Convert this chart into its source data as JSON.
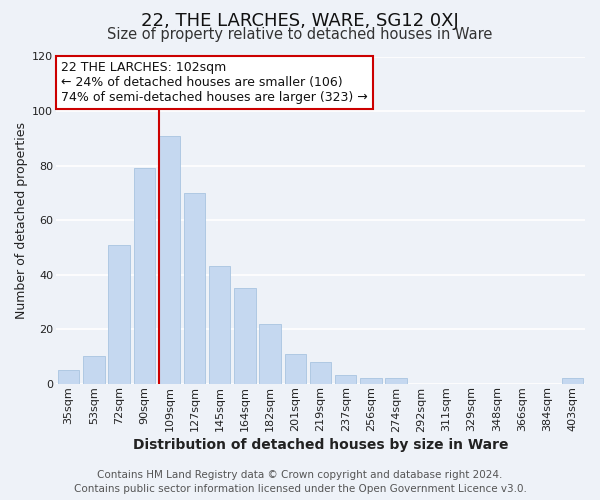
{
  "title": "22, THE LARCHES, WARE, SG12 0XJ",
  "subtitle": "Size of property relative to detached houses in Ware",
  "xlabel": "Distribution of detached houses by size in Ware",
  "ylabel": "Number of detached properties",
  "categories": [
    "35sqm",
    "53sqm",
    "72sqm",
    "90sqm",
    "109sqm",
    "127sqm",
    "145sqm",
    "164sqm",
    "182sqm",
    "201sqm",
    "219sqm",
    "237sqm",
    "256sqm",
    "274sqm",
    "292sqm",
    "311sqm",
    "329sqm",
    "348sqm",
    "366sqm",
    "384sqm",
    "403sqm"
  ],
  "values": [
    5,
    10,
    51,
    79,
    91,
    70,
    43,
    35,
    22,
    11,
    8,
    3,
    2,
    2,
    0,
    0,
    0,
    0,
    0,
    0,
    2
  ],
  "bar_color": "#c5d8f0",
  "bar_edge_color": "#a8c4e0",
  "vline_bar_index": 4,
  "vline_color": "#cc0000",
  "ylim": [
    0,
    120
  ],
  "yticks": [
    0,
    20,
    40,
    60,
    80,
    100,
    120
  ],
  "annotation_title": "22 THE LARCHES: 102sqm",
  "annotation_line1": "← 24% of detached houses are smaller (106)",
  "annotation_line2": "74% of semi-detached houses are larger (323) →",
  "annotation_box_facecolor": "#ffffff",
  "annotation_box_edgecolor": "#cc0000",
  "footer_line1": "Contains HM Land Registry data © Crown copyright and database right 2024.",
  "footer_line2": "Contains public sector information licensed under the Open Government Licence v3.0.",
  "background_color": "#eef2f8",
  "grid_color": "#ffffff",
  "title_fontsize": 13,
  "subtitle_fontsize": 10.5,
  "xlabel_fontsize": 10,
  "ylabel_fontsize": 9,
  "tick_fontsize": 8,
  "annotation_fontsize": 9,
  "footer_fontsize": 7.5
}
